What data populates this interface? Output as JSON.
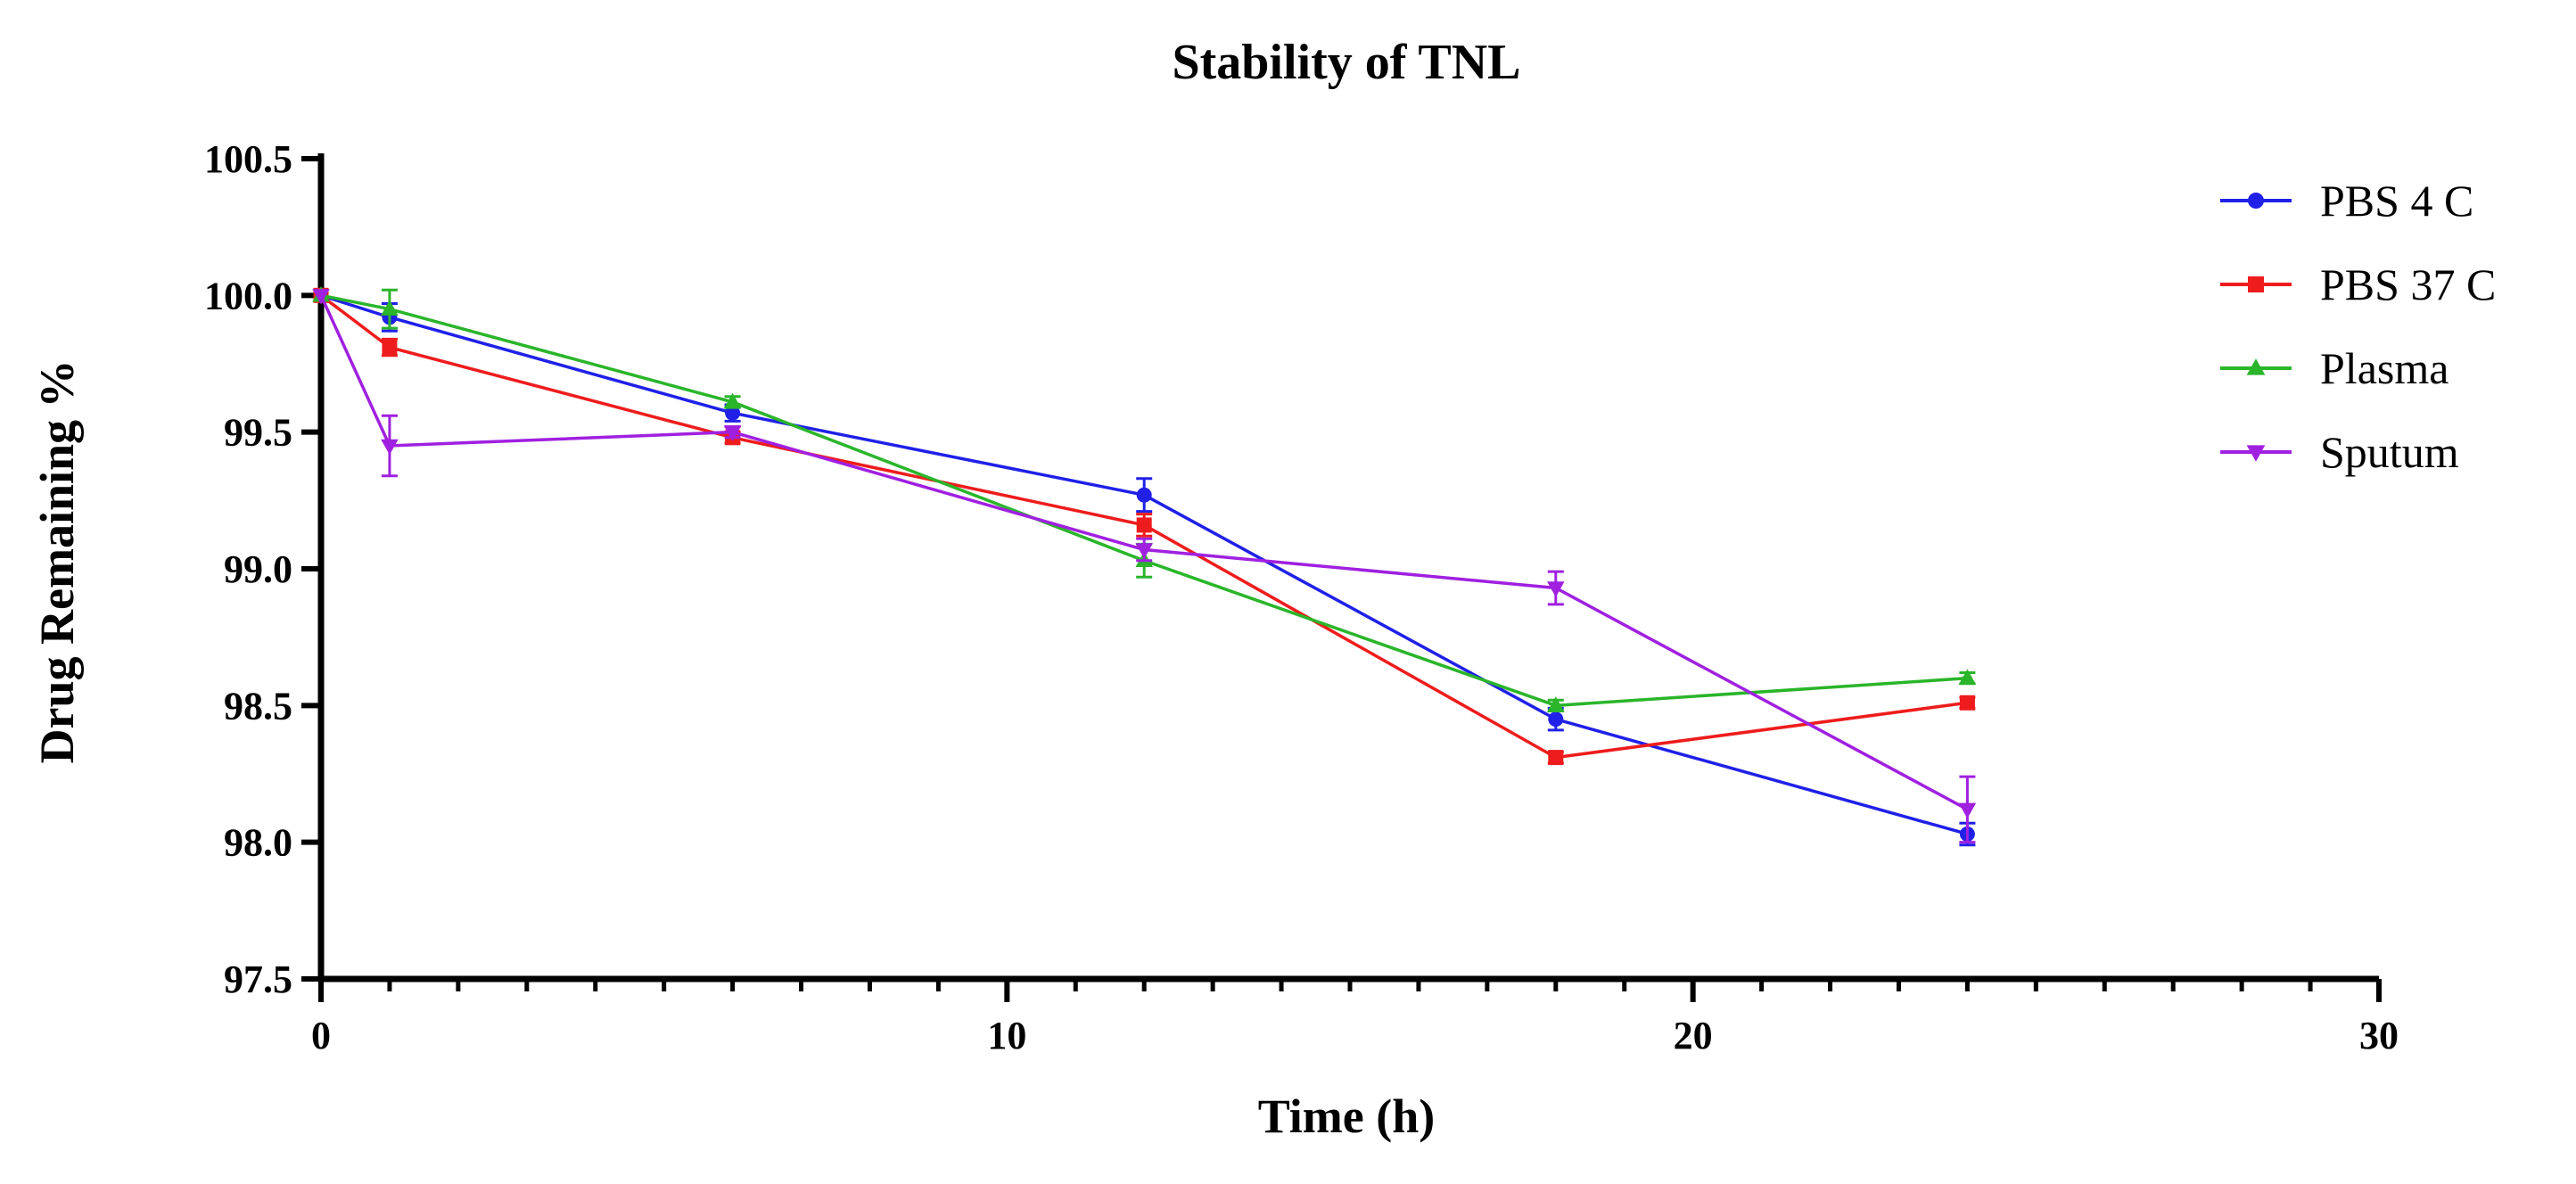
{
  "chart_data": {
    "type": "line",
    "title": "Stability of TNL",
    "xlabel": "Time (h)",
    "ylabel": "Drug Remaining %",
    "xlim": [
      0,
      30
    ],
    "ylim": [
      97.5,
      100.5
    ],
    "xticks": [
      0,
      10,
      20,
      30
    ],
    "xtick_labels": [
      "0",
      "10",
      "20",
      "30"
    ],
    "yticks": [
      97.5,
      98.0,
      98.5,
      99.0,
      99.5,
      100.0,
      100.5
    ],
    "ytick_labels": [
      "97.5",
      "98.0",
      "98.5",
      "99.0",
      "99.5",
      "100.0",
      "100.5"
    ],
    "grid": false,
    "legend_position": "top-right",
    "series": [
      {
        "name": "PBS 4 C",
        "color": "#2020e8",
        "marker": "circle",
        "x": [
          0,
          1,
          6,
          12,
          18,
          24
        ],
        "values": [
          100.0,
          99.92,
          99.57,
          99.27,
          98.45,
          98.03
        ],
        "errors": [
          0.0,
          0.05,
          0.03,
          0.06,
          0.04,
          0.04
        ]
      },
      {
        "name": "PBS 37 C",
        "color": "#ee1c1c",
        "marker": "square",
        "x": [
          0,
          1,
          6,
          12,
          18,
          24
        ],
        "values": [
          100.0,
          99.81,
          99.48,
          99.16,
          98.31,
          98.51
        ],
        "errors": [
          0.0,
          0.03,
          0.02,
          0.04,
          0.02,
          0.02
        ]
      },
      {
        "name": "Plasma",
        "color": "#2ab52a",
        "marker": "triangle-up",
        "x": [
          0,
          1,
          6,
          12,
          18,
          24
        ],
        "values": [
          100.0,
          99.95,
          99.61,
          99.03,
          98.5,
          98.6
        ],
        "errors": [
          0.0,
          0.07,
          0.02,
          0.06,
          0.02,
          0.02
        ]
      },
      {
        "name": "Sputum",
        "color": "#a020e0",
        "marker": "triangle-down",
        "x": [
          0,
          1,
          6,
          12,
          18,
          24
        ],
        "values": [
          100.0,
          99.45,
          99.5,
          99.07,
          98.93,
          98.12
        ],
        "errors": [
          0.0,
          0.11,
          0.02,
          0.04,
          0.06,
          0.12
        ]
      }
    ]
  }
}
